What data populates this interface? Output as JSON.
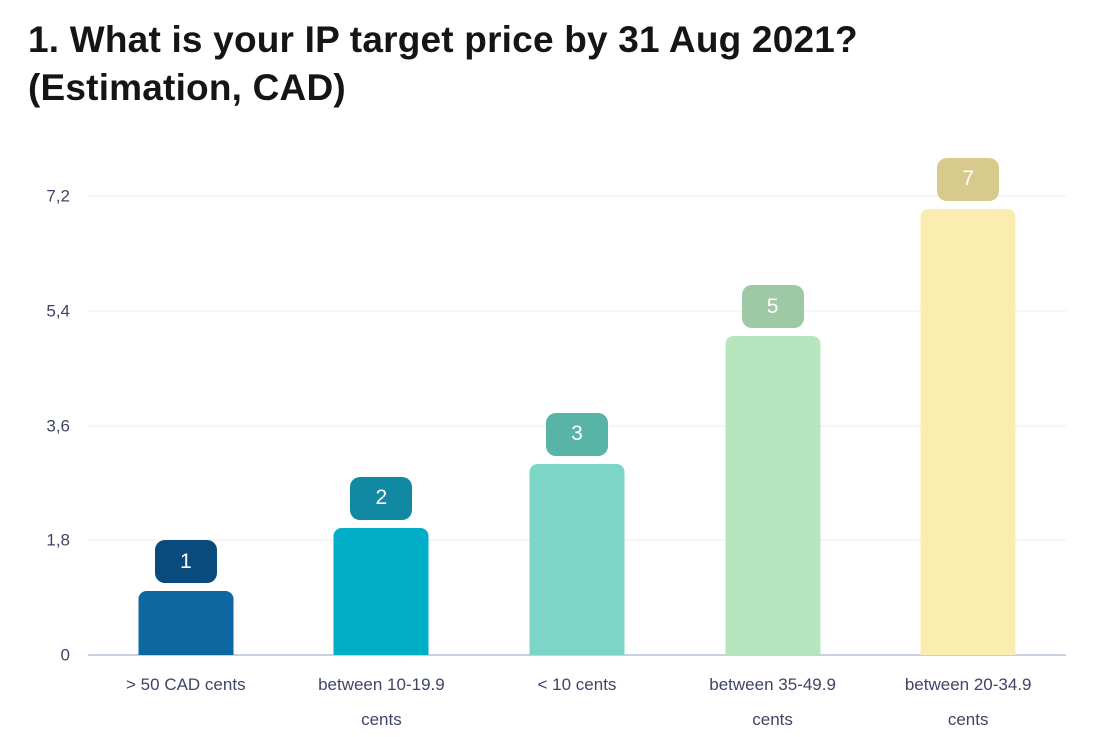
{
  "title": "1. What is your IP target price by 31 Aug 2021? (Estimation, CAD)",
  "colors": {
    "background": "#FFFFFF",
    "title_text": "#151515",
    "axis_text": "#3F4468",
    "gridline": "#ECECEC",
    "baseline": "#C7D1E4",
    "badge_text": "#FFFFFF"
  },
  "chart_data": {
    "type": "bar",
    "title": "1. What is your IP target price by 31 Aug 2021? (Estimation, CAD)",
    "categories": [
      "> 50 CAD cents",
      "between 10-19.9 cents",
      "< 10 cents",
      "between 35-49.9 cents",
      "between 20-34.9 cents"
    ],
    "values": [
      1,
      2,
      3,
      5,
      7
    ],
    "value_labels": [
      "1",
      "2",
      "3",
      "5",
      "7"
    ],
    "bar_colors": [
      "#0E67A0",
      "#00AEC8",
      "#7CD5C6",
      "#B6E5BE",
      "#FBEDB0"
    ],
    "badge_colors": [
      "#084B7C",
      "#1189A3",
      "#57B4A6",
      "#9DCAA4",
      "#D8C98C"
    ],
    "yticks": [
      "0",
      "1,8",
      "3,6",
      "5,4",
      "7,2"
    ],
    "ytick_values": [
      0,
      1.8,
      3.6,
      5.4,
      7.2
    ],
    "ylim": [
      0,
      7.2
    ],
    "xlabel": "",
    "ylabel": "",
    "grid": true,
    "legend": "none"
  }
}
